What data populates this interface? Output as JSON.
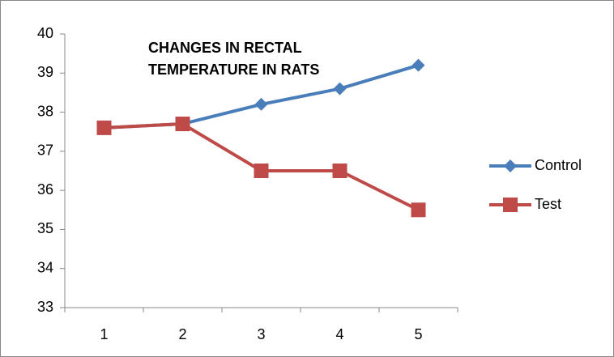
{
  "chart_data": {
    "type": "line",
    "title": "CHANGES IN RECTAL TEMPERATURE IN RATS",
    "categories": [
      "1",
      "2",
      "3",
      "4",
      "5"
    ],
    "series": [
      {
        "name": "Control",
        "color": "#4a7ebb",
        "marker": "diamond",
        "values": [
          37.6,
          37.7,
          38.2,
          38.6,
          39.2
        ]
      },
      {
        "name": "Test",
        "color": "#be4b48",
        "marker": "square",
        "values": [
          37.6,
          37.7,
          36.5,
          36.5,
          35.5
        ]
      }
    ],
    "ylim": [
      33,
      40
    ],
    "yticks": [
      33,
      34,
      35,
      36,
      37,
      38,
      39,
      40
    ],
    "grid": false,
    "legend": "right"
  }
}
